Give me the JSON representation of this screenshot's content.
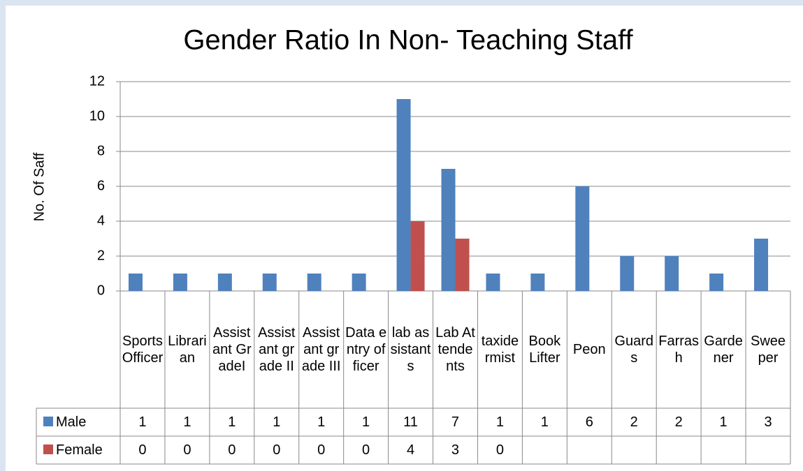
{
  "chart_data": {
    "type": "bar",
    "title": "Gender Ratio In Non- Teaching Staff",
    "y_label": "No. Of Saff",
    "categories": [
      "Sports Officer",
      "Librarian",
      "Assistant GradeI",
      "Assistant grade II",
      "Assistant grade III",
      "Data entry officer",
      "lab assistants",
      "Lab Attendents",
      "taxidermist",
      "Book Lifter",
      "Peon",
      "Guards",
      "Farrash",
      "Gardener",
      "Sweeper"
    ],
    "series": [
      {
        "name": "Male",
        "color": "#4f81bd",
        "values": [
          1,
          1,
          1,
          1,
          1,
          1,
          11,
          7,
          1,
          1,
          6,
          2,
          2,
          1,
          3
        ]
      },
      {
        "name": "Female",
        "color": "#c0504d",
        "values": [
          0,
          0,
          0,
          0,
          0,
          0,
          4,
          3,
          0,
          null,
          null,
          null,
          null,
          null,
          null
        ]
      }
    ],
    "ylim": [
      0,
      12
    ],
    "yticks": [
      0,
      2,
      4,
      6,
      8,
      10,
      12
    ],
    "grid": true
  }
}
